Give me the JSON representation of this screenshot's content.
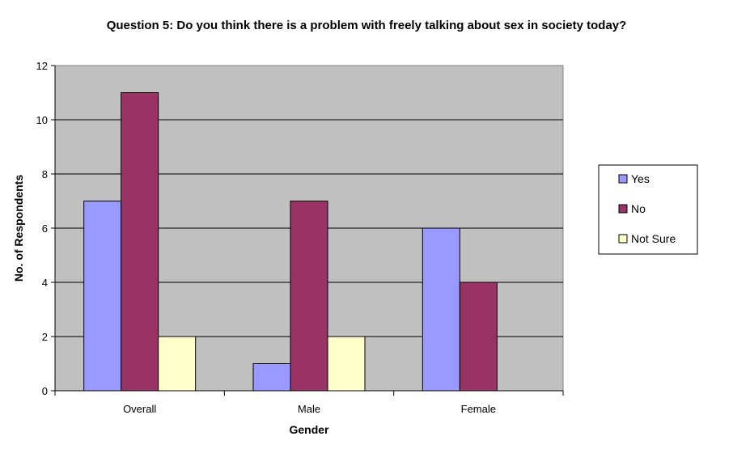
{
  "chart_data": {
    "type": "bar",
    "title": "Question 5: Do you think there is a problem with freely talking about sex in society today?",
    "xlabel": "Gender",
    "ylabel": "No. of Respondents",
    "categories": [
      "Overall",
      "Male",
      "Female"
    ],
    "series": [
      {
        "name": "Yes",
        "values": [
          7,
          1,
          6
        ],
        "color": "#9999ff"
      },
      {
        "name": "No",
        "values": [
          11,
          7,
          4
        ],
        "color": "#993366"
      },
      {
        "name": "Not Sure",
        "values": [
          2,
          2,
          0
        ],
        "color": "#ffffcc"
      }
    ],
    "ylim": [
      0,
      12
    ],
    "yticks": [
      0,
      2,
      4,
      6,
      8,
      10,
      12
    ],
    "grid": true,
    "plot_background": "#c0c0c0",
    "legend_position": "right"
  }
}
